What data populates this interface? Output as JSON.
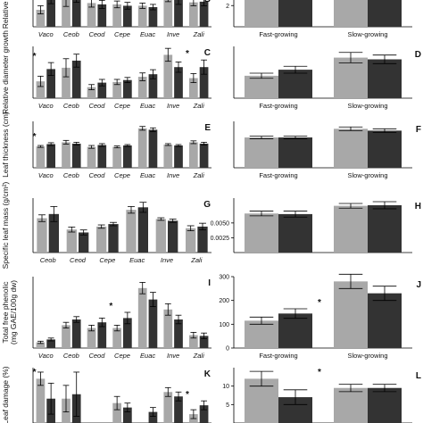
{
  "chart_data": [
    {
      "type": "bar",
      "panel": "B",
      "ylabel": "Relative he",
      "categories": [
        "Vaco",
        "Ceob",
        "Ceod",
        "Cepe",
        "Euac",
        "Inve",
        "Zali"
      ],
      "series": [
        {
          "values": [
            2.5,
            4.0,
            3.5,
            3.3,
            3.1,
            4.5,
            3.6
          ],
          "errors": [
            0.6,
            1.0,
            0.6,
            0.5,
            0.4,
            0.8,
            0.5
          ]
        },
        {
          "values": [
            4.4,
            4.8,
            3.3,
            3.1,
            2.9,
            4.0,
            3.7
          ],
          "errors": [
            1.0,
            1.2,
            0.6,
            0.5,
            0.4,
            0.7,
            0.6
          ]
        }
      ],
      "ylim": [
        0,
        5
      ],
      "yticks": [],
      "stars": [],
      "show_category_labels": true
    },
    {
      "type": "bar",
      "panel": "C",
      "ylabel": "Relative diameter growth",
      "categories": [
        "Vaco",
        "Ceob",
        "Ceod",
        "Cepe",
        "Euac",
        "Inve",
        "Zali"
      ],
      "series": [
        {
          "values": [
            2.6,
            4.7,
            1.7,
            2.5,
            3.3,
            6.7,
            3.1
          ],
          "errors": [
            0.8,
            1.4,
            0.4,
            0.4,
            0.6,
            1.0,
            0.7
          ]
        },
        {
          "values": [
            4.5,
            5.8,
            2.4,
            2.8,
            3.7,
            4.8,
            4.8
          ],
          "errors": [
            1.0,
            1.0,
            0.5,
            0.4,
            0.7,
            0.8,
            1.1
          ]
        }
      ],
      "ylim": [
        0,
        8
      ],
      "yticks": [],
      "stars": [
        {
          "category": 0,
          "label": "*"
        },
        {
          "category": 6,
          "label": "*"
        }
      ],
      "show_category_labels": true
    },
    {
      "type": "bar",
      "panel": "E",
      "ylabel": "Leaf thickness (cm)",
      "categories": [
        "Vaco",
        "Ceob",
        "Ceod",
        "Cepe",
        "Euac",
        "Inve",
        "Zali"
      ],
      "series": [
        {
          "values": [
            0.46,
            0.55,
            0.45,
            0.45,
            0.85,
            0.5,
            0.55
          ],
          "errors": [
            0.02,
            0.04,
            0.03,
            0.02,
            0.04,
            0.02,
            0.03
          ]
        },
        {
          "values": [
            0.51,
            0.52,
            0.49,
            0.48,
            0.82,
            0.48,
            0.52
          ],
          "errors": [
            0.03,
            0.03,
            0.03,
            0.02,
            0.04,
            0.02,
            0.03
          ]
        }
      ],
      "ylim": [
        0,
        1.0
      ],
      "yticks": [],
      "stars": [
        {
          "category": 0,
          "label": "*"
        }
      ],
      "show_category_labels": true
    },
    {
      "type": "bar",
      "panel": "G",
      "ylabel": "Specific leaf mass (g/cm²)",
      "categories": [
        "Ceob",
        "Ceod",
        "Cepe",
        "Euac",
        "Inve",
        "Zali"
      ],
      "series": [
        {
          "values": [
            0.0082,
            0.0055,
            0.0062,
            0.0102,
            0.008,
            0.0058
          ],
          "errors": [
            0.0008,
            0.0006,
            0.0004,
            0.0008,
            0.0003,
            0.0006
          ]
        },
        {
          "values": [
            0.0092,
            0.0048,
            0.0068,
            0.0108,
            0.0076,
            0.0062
          ],
          "errors": [
            0.0018,
            0.0006,
            0.0004,
            0.0012,
            0.0004,
            0.0008
          ]
        }
      ],
      "ylim": [
        0,
        0.013
      ],
      "yticks": [],
      "stars": [],
      "show_category_labels": true
    },
    {
      "type": "bar",
      "panel": "I",
      "ylabel": "Total free phenolic\n(mg GAE/100g dw)",
      "categories": [
        "Vaco",
        "Ceob",
        "Ceod",
        "Cepe",
        "Euac",
        "Inve",
        "Zali"
      ],
      "series": [
        {
          "values": [
            40,
            160,
            140,
            140,
            420,
            270,
            90
          ],
          "errors": [
            8,
            20,
            20,
            20,
            40,
            40,
            20
          ]
        },
        {
          "values": [
            60,
            200,
            180,
            210,
            340,
            200,
            85
          ],
          "errors": [
            10,
            20,
            30,
            40,
            50,
            30,
            20
          ]
        }
      ],
      "ylim": [
        0,
        500
      ],
      "yticks": [],
      "stars": [
        {
          "category": 3,
          "label": "*"
        }
      ],
      "show_category_labels": true
    },
    {
      "type": "bar",
      "panel": "K",
      "ylabel": "Leaf damage (%)",
      "categories": [
        "Vaco",
        "Ceob",
        "Ceod",
        "Cepe",
        "Euac",
        "Inve",
        "Zali"
      ],
      "series": [
        {
          "values": [
            20,
            11,
            0,
            9,
            0,
            14,
            4
          ],
          "errors": [
            3,
            6,
            0,
            3,
            0,
            2,
            2
          ]
        },
        {
          "values": [
            11,
            13,
            0,
            7,
            5,
            12,
            8
          ],
          "errors": [
            7,
            10,
            0,
            2,
            2,
            2,
            2
          ]
        }
      ],
      "ylim": [
        0,
        25
      ],
      "yticks": [],
      "stars": [
        {
          "category": 0,
          "label": "*"
        },
        {
          "category": 6,
          "label": "*"
        }
      ],
      "show_category_labels": false
    },
    {
      "type": "bar",
      "panel": "",
      "ylabel": "",
      "categories": [
        "Fast-growing",
        "Slow-growing"
      ],
      "series": [
        {
          "values": [
            3.2,
            3.2
          ],
          "errors": []
        },
        {
          "values": [
            3.2,
            3.2
          ],
          "errors": []
        }
      ],
      "ylim": [
        0,
        3.2
      ],
      "yticks": [
        "2"
      ],
      "stars": [],
      "show_category_labels": true
    },
    {
      "type": "bar",
      "panel": "D",
      "ylabel": "",
      "categories": [
        "Fast-growing",
        "Slow-growing"
      ],
      "series": [
        {
          "values": [
            2.6,
            4.7
          ],
          "errors": [
            0.3,
            0.6
          ]
        },
        {
          "values": [
            3.3,
            4.5
          ],
          "errors": [
            0.4,
            0.5
          ]
        }
      ],
      "ylim": [
        0,
        6
      ],
      "yticks": [],
      "stars": [],
      "show_category_labels": true
    },
    {
      "type": "bar",
      "panel": "F",
      "ylabel": "",
      "categories": [
        "Fast-growing",
        "Slow-growing"
      ],
      "series": [
        {
          "values": [
            0.49,
            0.63
          ],
          "errors": [
            0.02,
            0.03
          ]
        },
        {
          "values": [
            0.49,
            0.6
          ],
          "errors": [
            0.02,
            0.03
          ]
        }
      ],
      "ylim": [
        0,
        0.75
      ],
      "yticks": [],
      "stars": [],
      "show_category_labels": true
    },
    {
      "type": "bar",
      "panel": "H",
      "ylabel": "",
      "categories": [
        "Fast-growing",
        "Slow-growing"
      ],
      "series": [
        {
          "values": [
            0.0066,
            0.0079
          ],
          "errors": [
            0.0004,
            0.0004
          ]
        },
        {
          "values": [
            0.0065,
            0.008
          ],
          "errors": [
            0.0005,
            0.0006
          ]
        }
      ],
      "ylim": [
        0,
        0.0092
      ],
      "yticks": [
        "0.0050",
        "0.0025"
      ],
      "stars": [],
      "show_category_labels": false
    },
    {
      "type": "bar",
      "panel": "J",
      "ylabel": "",
      "categories": [
        "Fast-growing",
        "Slow-growing"
      ],
      "series": [
        {
          "values": [
            115,
            280
          ],
          "errors": [
            15,
            30
          ]
        },
        {
          "values": [
            145,
            230
          ],
          "errors": [
            20,
            30
          ]
        }
      ],
      "ylim": [
        0,
        300
      ],
      "yticks": [
        "300",
        "200",
        "100",
        "0"
      ],
      "stars": [
        {
          "category": 0,
          "label": "*"
        }
      ],
      "show_category_labels": true
    },
    {
      "type": "bar",
      "panel": "L",
      "ylabel": "",
      "categories": [
        "Fast-growing",
        "Slow-growing"
      ],
      "series": [
        {
          "values": [
            12,
            9.5
          ],
          "errors": [
            2,
            1
          ]
        },
        {
          "values": [
            7,
            9.5
          ],
          "errors": [
            2,
            1
          ]
        }
      ],
      "ylim": [
        0,
        15
      ],
      "yticks": [
        "10",
        "5"
      ],
      "stars": [
        {
          "category": 0,
          "label": "*"
        }
      ],
      "show_category_labels": false
    }
  ],
  "colors": {
    "light": "#a8a8a8",
    "dark": "#333333",
    "axis": "#000000"
  }
}
